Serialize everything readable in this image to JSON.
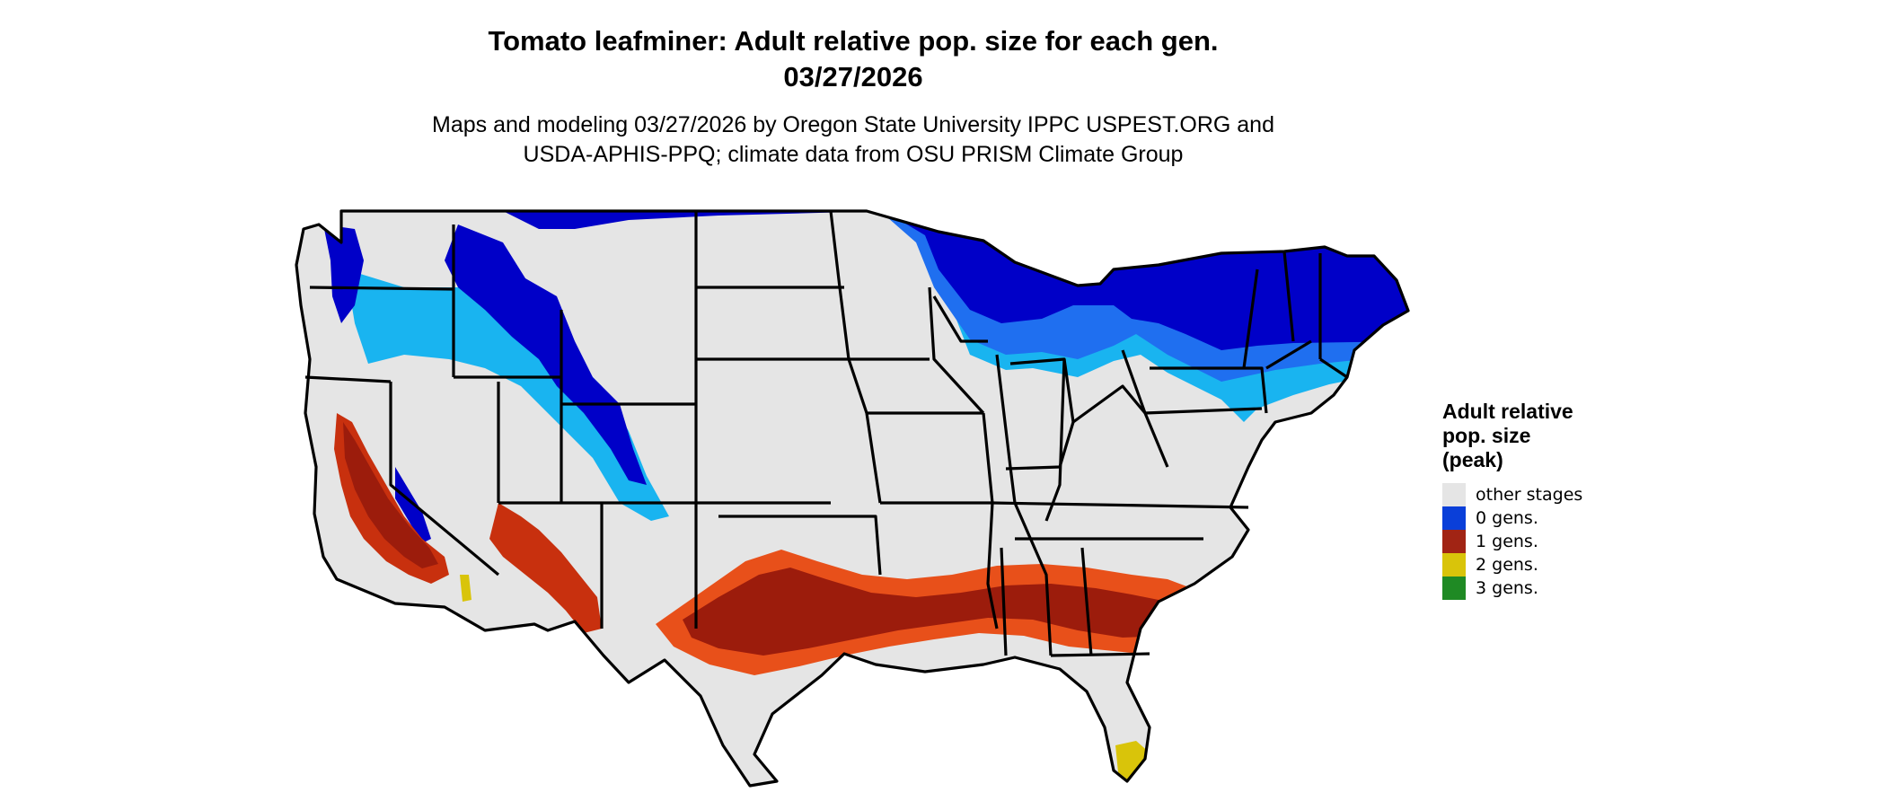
{
  "title": {
    "line1": "Tomato leafminer: Adult relative pop. size for each gen.",
    "line2": "03/27/2026"
  },
  "subtitle": {
    "line1": "Maps and modeling 03/27/2026 by Oregon State University IPPC USPEST.ORG and",
    "line2": "USDA-APHIS-PPQ; climate data from OSU PRISM Climate Group"
  },
  "legend": {
    "title_lines": [
      "Adult relative",
      "pop. size",
      "(peak)"
    ],
    "items": [
      {
        "label": "other stages",
        "color": "#e5e5e5"
      },
      {
        "label": "0 gens.",
        "color": "#0a3fd9"
      },
      {
        "label": "1 gens.",
        "color": "#a12414"
      },
      {
        "label": "2 gens.",
        "color": "#d9c40a"
      },
      {
        "label": "3 gens.",
        "color": "#1f8a24"
      }
    ]
  },
  "map_colors": {
    "land": "#e5e5e5",
    "border": "#000000",
    "blue_dark": "#0000c8",
    "blue_mid": "#1f6ff0",
    "blue_light": "#19b4f0",
    "red_dark": "#9c1c0c",
    "red_mid": "#c8300e",
    "orange": "#e8501a",
    "yellow": "#d9c40a"
  }
}
